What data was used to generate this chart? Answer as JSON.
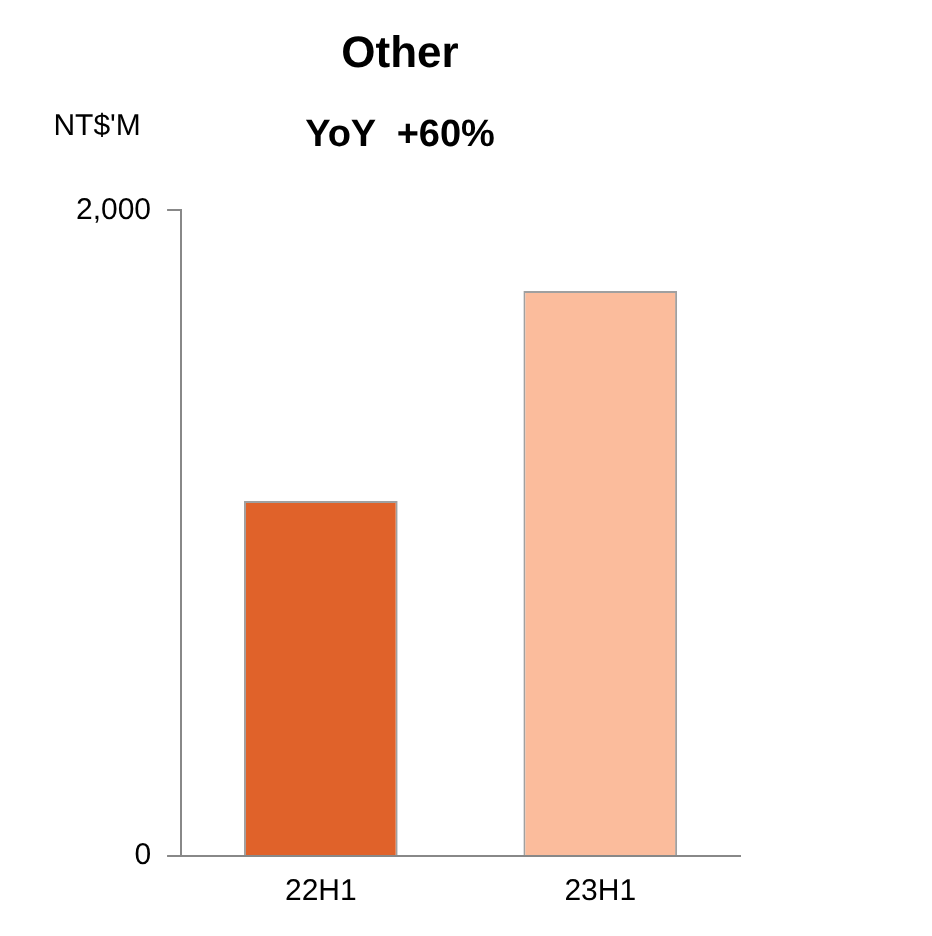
{
  "chart_data": {
    "type": "bar",
    "title": "Other",
    "subtitle": "YoY  +60%",
    "ylabel": "NT$'M",
    "categories": [
      "22H1",
      "23H1"
    ],
    "values": [
      1100,
      1750
    ],
    "colors": [
      "#e0622a",
      "#fbbc9c"
    ],
    "ylim": [
      0,
      2000
    ],
    "yticks": [
      0,
      {
        "value": 2000,
        "label": "2,000"
      }
    ],
    "grid": false,
    "legend": false
  }
}
